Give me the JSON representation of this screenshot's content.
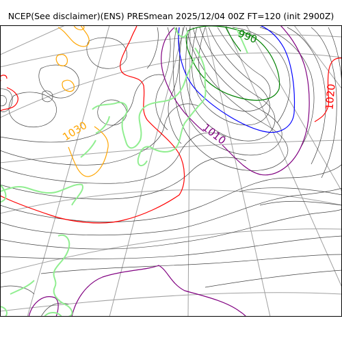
{
  "title": "NCEP(See disclaimer)(ENS) PRESmean 2025/12/04 00Z FT=120 (init 2900Z)",
  "contour_labels": [
    {
      "text": "990",
      "color": "#008000"
    },
    {
      "text": "1010",
      "color": "#800080"
    },
    {
      "text": "1030",
      "color": "#ffa500"
    },
    {
      "text": "1020",
      "color": "#ff0000"
    },
    {
      "text": "0",
      "color": "#ff0000"
    }
  ],
  "colors": {
    "isobar": "#404040",
    "graticule": "#a0a0a0",
    "coastline": "#90ee90",
    "isobar_990": "#008000",
    "isobar_1000": "#0000ff",
    "isobar_1010": "#800080",
    "isobar_1020": "#ff0000",
    "isobar_1030": "#ffa500"
  }
}
